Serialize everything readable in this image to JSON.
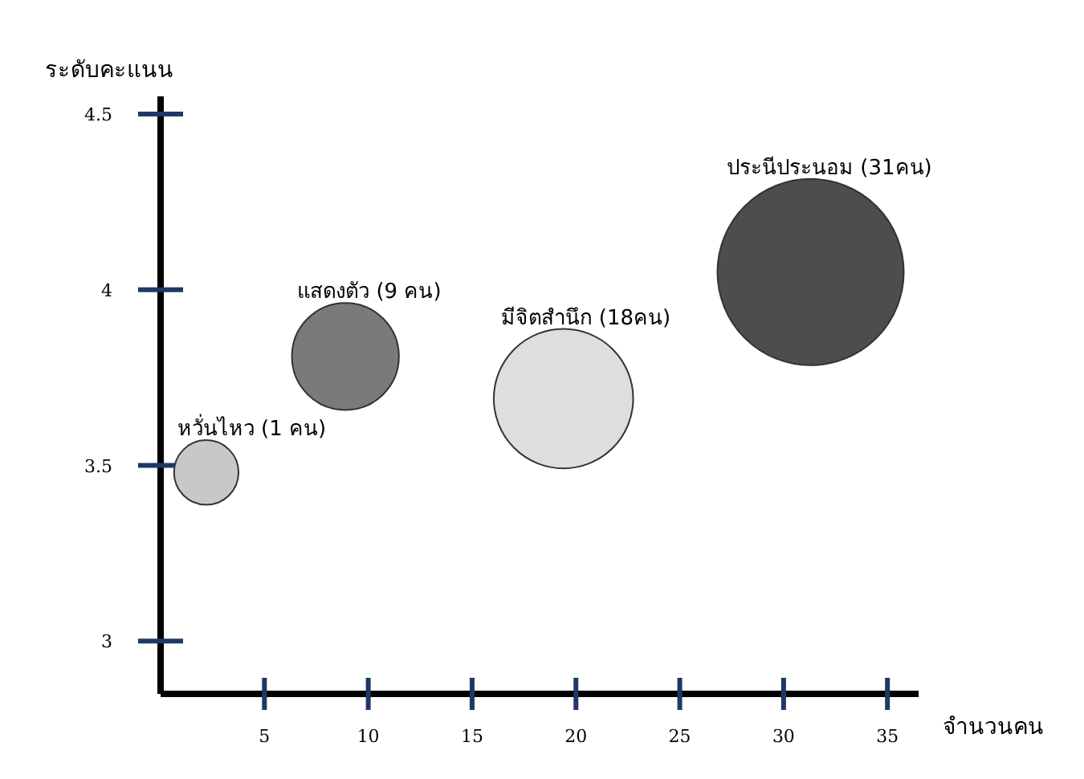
{
  "chart_data": {
    "type": "bubble",
    "xlabel": "จำนวนคน",
    "ylabel": "ระดับคะแนน",
    "xlim": [
      0,
      36.5
    ],
    "ylim": [
      2.85,
      4.55
    ],
    "xticks": [
      5,
      10,
      15,
      20,
      25,
      30,
      35
    ],
    "yticks": [
      3,
      3.5,
      4,
      4.5
    ],
    "grid": false,
    "legend": false,
    "series": [
      {
        "name": "หวั่นไหว (1 คน)",
        "color": "#c8c8c8",
        "x": [
          2.2
        ],
        "values": [
          3.48
        ],
        "sizes": [
          0.12
        ]
      },
      {
        "name": "แสดงตัว (9 คน)",
        "color": "#7a7a7a",
        "x": [
          8.9
        ],
        "values": [
          3.81
        ],
        "sizes": [
          0.33
        ]
      },
      {
        "name": "มีจิตสำนึก (18คน)",
        "color": "#dedede",
        "x": [
          19.4
        ],
        "values": [
          3.69
        ],
        "sizes": [
          0.56
        ]
      },
      {
        "name": "ประนีประนอม (31คน)",
        "color": "#4d4d4d",
        "x": [
          31.3
        ],
        "values": [
          4.05
        ],
        "sizes": [
          1
        ]
      }
    ]
  }
}
